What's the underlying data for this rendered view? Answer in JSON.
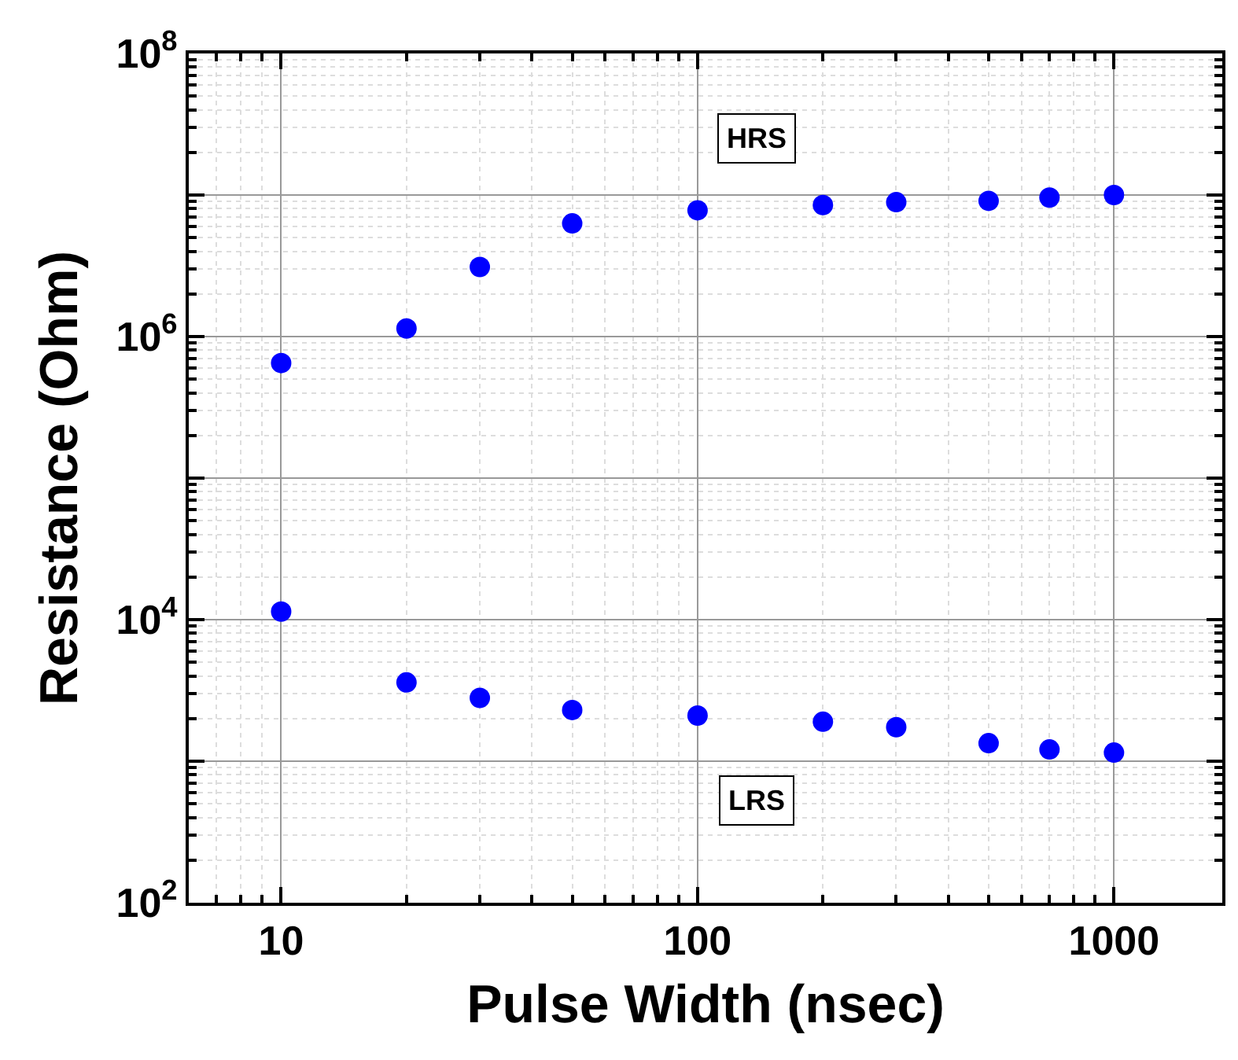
{
  "chart_data": {
    "type": "scatter",
    "xlabel": "Pulse Width (nsec)",
    "ylabel": "Resistance (Ohm)",
    "x": [
      10,
      20,
      30,
      50,
      100,
      200,
      300,
      500,
      700,
      1000
    ],
    "series": [
      {
        "color": "#0000ff",
        "values": [
          650000,
          1140000,
          3100000,
          6300000,
          7800000,
          8500000,
          8900000,
          9100000,
          9600000,
          10000000
        ]
      },
      {
        "color": "#0000ff",
        "values": [
          11400,
          3600,
          2800,
          2300,
          2100,
          1900,
          1740,
          1340,
          1210,
          1150
        ]
      }
    ],
    "annotations": [
      "HRS",
      "LRS"
    ],
    "xlim": [
      6,
      1820
    ],
    "xticks": [
      10,
      100,
      1000
    ],
    "ylim": [
      100,
      100000000
    ],
    "yticks": [
      {
        "value": 100,
        "label": "10$^{2}$"
      },
      {
        "value": 1000,
        "label": null
      },
      {
        "value": 10000,
        "label": "10$^{4}$"
      },
      {
        "value": 100000,
        "label": null
      },
      {
        "value": 1000000,
        "label": "10$^{6}$"
      },
      {
        "value": 10000000,
        "label": null
      },
      {
        "value": 100000000,
        "label": "10$^{8}$"
      }
    ],
    "log": "xy",
    "grid": true,
    "marker": "circle"
  }
}
